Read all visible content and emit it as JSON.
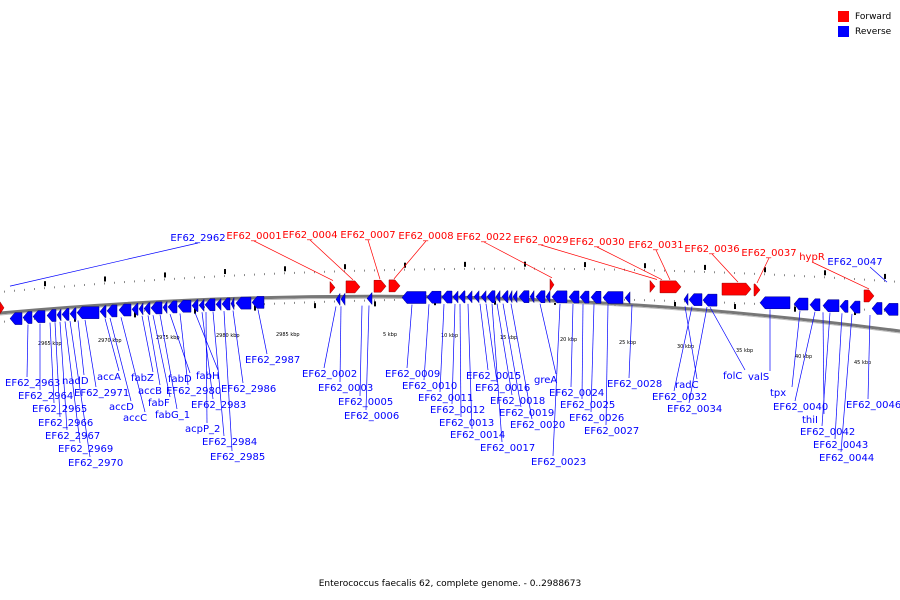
{
  "title": "Enterococcus faecalis 62, complete genome. - 0..2988673",
  "legend": {
    "forward": {
      "label": "Forward",
      "color": "#ff0000"
    },
    "reverse": {
      "label": "Reverse",
      "color": "#0000ff"
    }
  },
  "scale_labels": [
    "2965 kbp",
    "2970 kbp",
    "2975 kbp",
    "2980 kbp",
    "2985 kbp",
    "5 kbp",
    "10 kbp",
    "15 kbp",
    "20 kbp",
    "25 kbp",
    "30 kbp",
    "35 kbp",
    "40 kbp",
    "45 kbp"
  ],
  "forward_genes": [
    "EF62_0001",
    "EF62_0004",
    "EF62_0007",
    "EF62_0008",
    "EF62_0022",
    "EF62_0029",
    "EF62_0030",
    "EF62_0031",
    "EF62_0036",
    "EF62_0037",
    "hypR"
  ],
  "reverse_top_genes": [
    "EF62_2962",
    "EF62_0047"
  ],
  "reverse_genes": [
    "EF62_2963",
    "EF62_2964",
    "EF62_2965",
    "EF62_2966",
    "EF62_2967",
    "EF62_2969",
    "EF62_2970",
    "nadD",
    "EF62_2971",
    "accA",
    "accD",
    "accC",
    "fabZ",
    "accB",
    "fabF",
    "fabG_1",
    "fabD",
    "EF62_2980",
    "fabH",
    "EF62_2983",
    "acpP_2",
    "EF62_2984",
    "EF62_2985",
    "EF62_2986",
    "EF62_2987",
    "EF62_0002",
    "EF62_0003",
    "EF62_0005",
    "EF62_0006",
    "EF62_0009",
    "EF62_0010",
    "EF62_0011",
    "EF62_0012",
    "EF62_0013",
    "EF62_0014",
    "EF62_0015",
    "EF62_0016",
    "EF62_0017",
    "EF62_0018",
    "EF62_0019",
    "EF62_0020",
    "greA",
    "EF62_0023",
    "EF62_0024",
    "EF62_0025",
    "EF62_0026",
    "EF62_0027",
    "EF62_0028",
    "radC",
    "EF62_0032",
    "EF62_0034",
    "folC",
    "valS",
    "tpx",
    "EF62_0040",
    "thiI",
    "EF62_0042",
    "EF62_0043",
    "EF62_0044",
    "EF62_0046"
  ]
}
